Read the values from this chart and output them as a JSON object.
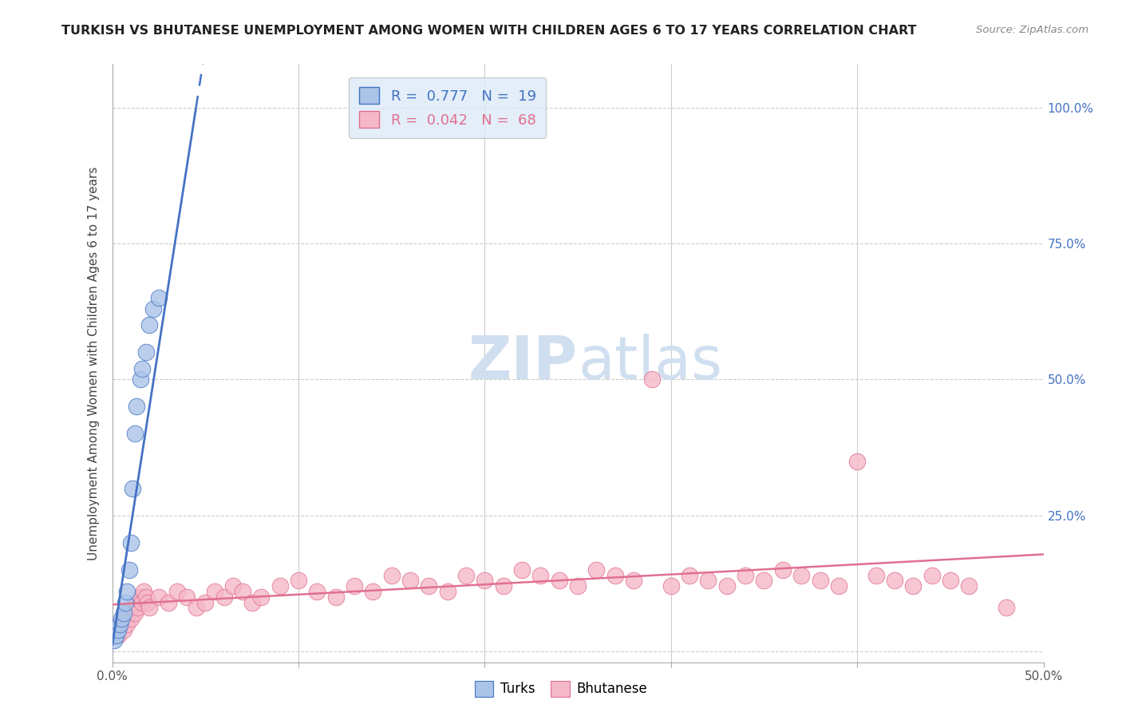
{
  "title": "TURKISH VS BHUTANESE UNEMPLOYMENT AMONG WOMEN WITH CHILDREN AGES 6 TO 17 YEARS CORRELATION CHART",
  "source": "Source: ZipAtlas.com",
  "ylabel": "Unemployment Among Women with Children Ages 6 to 17 years",
  "xlim": [
    0.0,
    0.5
  ],
  "ylim": [
    -0.02,
    1.08
  ],
  "turks_R": 0.777,
  "turks_N": 19,
  "bhutanese_R": 0.042,
  "bhutanese_N": 68,
  "turks_color": "#aac4e8",
  "bhutanese_color": "#f5b8c8",
  "turks_line_color": "#4472c4",
  "bhutanese_line_color": "#e07090",
  "legend_box_color": "#ddeaf8",
  "watermark_color": "#d0dff0",
  "right_tick_color": "#4472c4",
  "background_color": "#ffffff",
  "turks_x": [
    0.001,
    0.002,
    0.003,
    0.004,
    0.005,
    0.006,
    0.007,
    0.008,
    0.009,
    0.01,
    0.011,
    0.012,
    0.013,
    0.015,
    0.016,
    0.018,
    0.02,
    0.022,
    0.025
  ],
  "turks_y": [
    0.02,
    0.03,
    0.04,
    0.05,
    0.06,
    0.07,
    0.09,
    0.11,
    0.15,
    0.2,
    0.3,
    0.4,
    0.45,
    0.5,
    0.52,
    0.55,
    0.6,
    0.63,
    0.65
  ],
  "bhutanese_x": [
    0.003,
    0.005,
    0.006,
    0.007,
    0.008,
    0.009,
    0.01,
    0.011,
    0.012,
    0.013,
    0.014,
    0.015,
    0.016,
    0.017,
    0.018,
    0.019,
    0.02,
    0.025,
    0.03,
    0.035,
    0.04,
    0.045,
    0.05,
    0.055,
    0.06,
    0.065,
    0.07,
    0.075,
    0.08,
    0.09,
    0.1,
    0.11,
    0.12,
    0.13,
    0.14,
    0.15,
    0.16,
    0.17,
    0.18,
    0.19,
    0.2,
    0.21,
    0.22,
    0.23,
    0.24,
    0.25,
    0.26,
    0.27,
    0.28,
    0.29,
    0.3,
    0.31,
    0.32,
    0.33,
    0.34,
    0.35,
    0.36,
    0.37,
    0.38,
    0.39,
    0.4,
    0.41,
    0.42,
    0.43,
    0.44,
    0.45,
    0.46,
    0.48
  ],
  "bhutanese_y": [
    0.03,
    0.05,
    0.04,
    0.06,
    0.05,
    0.07,
    0.06,
    0.08,
    0.07,
    0.09,
    0.08,
    0.1,
    0.09,
    0.11,
    0.1,
    0.09,
    0.08,
    0.1,
    0.09,
    0.11,
    0.1,
    0.08,
    0.09,
    0.11,
    0.1,
    0.12,
    0.11,
    0.09,
    0.1,
    0.12,
    0.13,
    0.11,
    0.1,
    0.12,
    0.11,
    0.14,
    0.13,
    0.12,
    0.11,
    0.14,
    0.13,
    0.12,
    0.15,
    0.14,
    0.13,
    0.12,
    0.15,
    0.14,
    0.13,
    0.5,
    0.12,
    0.14,
    0.13,
    0.12,
    0.14,
    0.13,
    0.15,
    0.14,
    0.13,
    0.12,
    0.35,
    0.14,
    0.13,
    0.12,
    0.14,
    0.13,
    0.12,
    0.08
  ]
}
